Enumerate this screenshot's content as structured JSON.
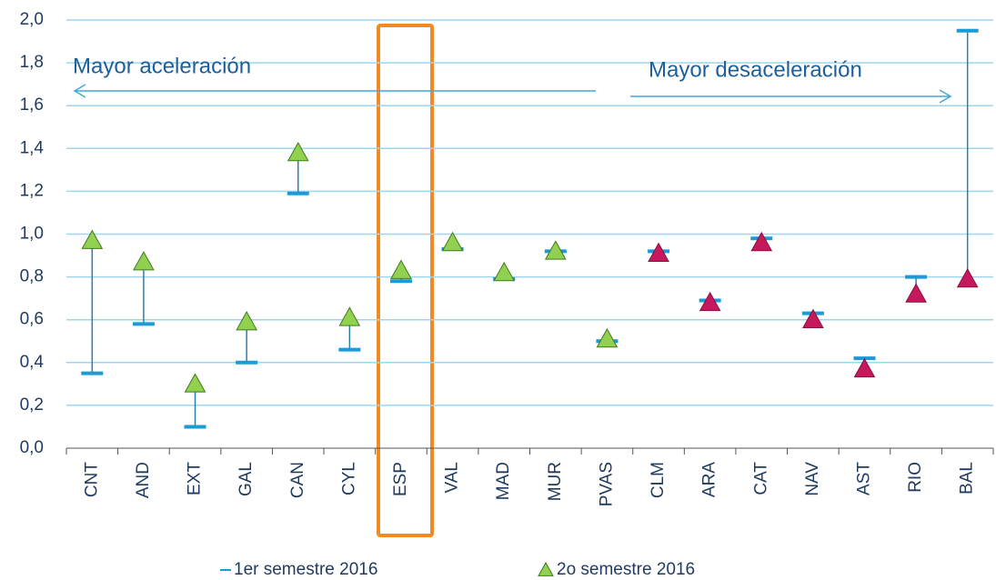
{
  "chart_data": {
    "type": "dumbbell",
    "categories": [
      "CNT",
      "AND",
      "EXT",
      "GAL",
      "CAN",
      "CYL",
      "ESP",
      "VAL",
      "MAD",
      "MUR",
      "PVAS",
      "CLM",
      "ARA",
      "CAT",
      "NAV",
      "AST",
      "RIO",
      "BAL"
    ],
    "series": [
      {
        "name": "1er semestre 2016",
        "color": "#1a9ad6",
        "marker": "dash",
        "values": [
          0.35,
          0.58,
          0.1,
          0.4,
          1.19,
          0.46,
          0.78,
          0.93,
          0.79,
          0.92,
          0.5,
          0.92,
          0.69,
          0.98,
          0.63,
          0.42,
          0.8,
          1.95
        ]
      },
      {
        "name": "2o semestre 2016",
        "color": "#92d050",
        "marker": "triangle",
        "marker_colors": [
          "#92d050",
          "#92d050",
          "#92d050",
          "#92d050",
          "#92d050",
          "#92d050",
          "#92d050",
          "#92d050",
          "#92d050",
          "#92d050",
          "#92d050",
          "#c8185d",
          "#c8185d",
          "#c8185d",
          "#c8185d",
          "#c8185d",
          "#c8185d",
          "#c8185d"
        ],
        "values": [
          0.97,
          0.87,
          0.3,
          0.59,
          1.38,
          0.61,
          0.83,
          0.96,
          0.82,
          0.92,
          0.51,
          0.91,
          0.68,
          0.96,
          0.6,
          0.37,
          0.72,
          0.79
        ]
      }
    ],
    "whisker_color": "#2b7fae",
    "ylim": [
      0,
      2.0
    ],
    "yticks": [
      {
        "value": 0,
        "label": "0,0"
      },
      {
        "value": 0.2,
        "label": "0,2"
      },
      {
        "value": 0.4,
        "label": "0,4"
      },
      {
        "value": 0.6,
        "label": "0,6"
      },
      {
        "value": 0.8,
        "label": "0,8"
      },
      {
        "value": 1.0,
        "label": "1,0"
      },
      {
        "value": 1.2,
        "label": "1,2"
      },
      {
        "value": 1.4,
        "label": "1,4"
      },
      {
        "value": 1.6,
        "label": "1,6"
      },
      {
        "value": 1.8,
        "label": "1,8"
      },
      {
        "value": 2.0,
        "label": "2,0"
      }
    ],
    "grid": true,
    "annotations": [
      {
        "text": "Mayor aceleración",
        "direction": "left"
      },
      {
        "text": "Mayor desaceleración",
        "direction": "right"
      }
    ],
    "legend": "bottom"
  }
}
